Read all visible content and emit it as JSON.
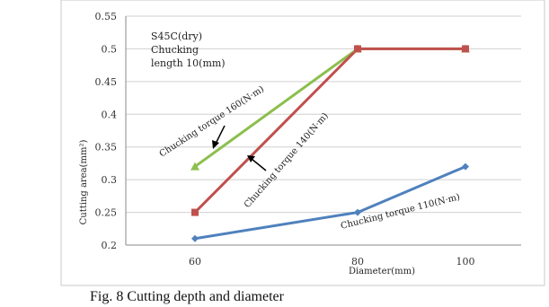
{
  "caption": "Fig. 8  Cutting depth and diameter",
  "chart_data": {
    "type": "line",
    "categories": [
      "60",
      "80",
      "100"
    ],
    "x": [
      60,
      80,
      100
    ],
    "xlabel": "Diameter(mm)",
    "ylabel": "Cutting  area(mm²)",
    "ylim": [
      0.2,
      0.55
    ],
    "yticks": [
      0.2,
      0.25,
      0.3,
      0.35,
      0.4,
      0.45,
      0.5,
      0.55
    ],
    "ytick_labels": [
      "0.2",
      "0.25",
      "0.3",
      "0.35",
      "0.4",
      "0.45",
      "0.5",
      "0.55"
    ],
    "grid": "horizontal",
    "note_lines": [
      "S45C(dry)",
      "Chucking",
      "length 10(mm)"
    ],
    "series": [
      {
        "name": "Chucking   torque 160(N·m)",
        "values": [
          0.32,
          0.5,
          0.5
        ],
        "color": "#8cbf4e",
        "marker": "triangle"
      },
      {
        "name": "Chucking   torque 140(N·m)",
        "values": [
          0.25,
          0.5,
          0.5
        ],
        "color": "#c0504d",
        "marker": "square"
      },
      {
        "name": "Chucking   torque 110(N·m)",
        "values": [
          0.21,
          0.25,
          0.32
        ],
        "color": "#4f81bd",
        "marker": "diamond"
      }
    ]
  }
}
